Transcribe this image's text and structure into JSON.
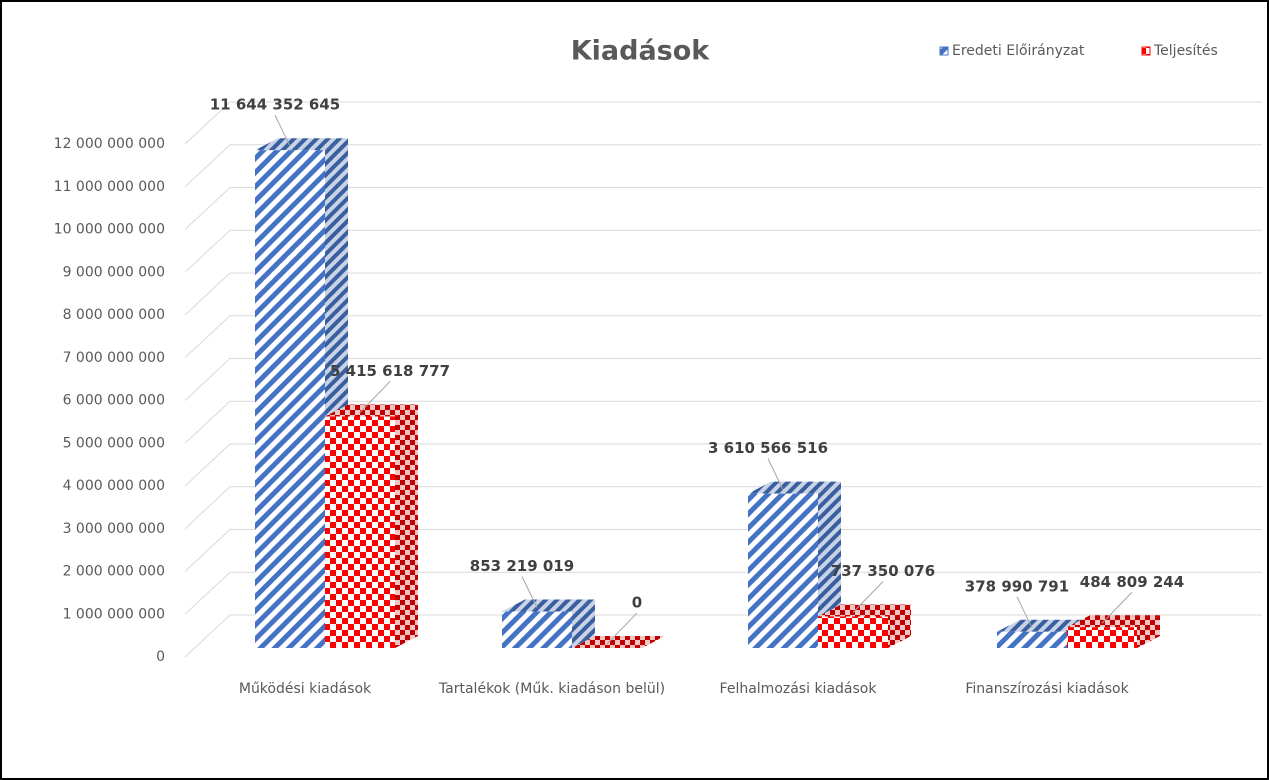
{
  "chart_data": {
    "type": "bar3d",
    "title": "Kiadások",
    "categories": [
      "Működési kiadások",
      "Tartalékok (Műk. kiadáson belül)",
      "Felhalmozási kiadások",
      "Finanszírozási kiadások"
    ],
    "series": [
      {
        "name": "Eredeti Előirányzat",
        "color": "#4472c4",
        "values": [
          11644352645,
          853219019,
          3610566516,
          378990791
        ],
        "value_labels": [
          "11 644 352 645",
          "853 219 019",
          "3 610 566 516",
          "378 990 791"
        ]
      },
      {
        "name": "Teljesítés",
        "color": "#ff0000",
        "values": [
          5415618777,
          0,
          737350076,
          484809244
        ],
        "value_labels": [
          "5 415 618 777",
          "0",
          "737 350 076",
          "484 809 244"
        ]
      }
    ],
    "ylim": [
      0,
      12000000000
    ],
    "yticks": [
      0,
      {
        "value": 1000000000,
        "label": "1 000 000 000"
      },
      {
        "value": 2000000000,
        "label": "2 000 000 000"
      },
      {
        "value": 3000000000,
        "label": "3 000 000 000"
      },
      {
        "value": 4000000000,
        "label": "4 000 000 000"
      },
      {
        "value": 5000000000,
        "label": "5 000 000 000"
      },
      {
        "value": 6000000000,
        "label": "6 000 000 000"
      },
      {
        "value": 7000000000,
        "label": "7 000 000 000"
      },
      {
        "value": 8000000000,
        "label": "8 000 000 000"
      },
      {
        "value": 9000000000,
        "label": "9 000 000 000"
      },
      {
        "value": 10000000000,
        "label": "10 000 000 000"
      },
      {
        "value": 11000000000,
        "label": "11 000 000 000"
      },
      {
        "value": 12000000000,
        "label": "12 000 000 000"
      }
    ],
    "grid": true,
    "legend": "top-right"
  }
}
